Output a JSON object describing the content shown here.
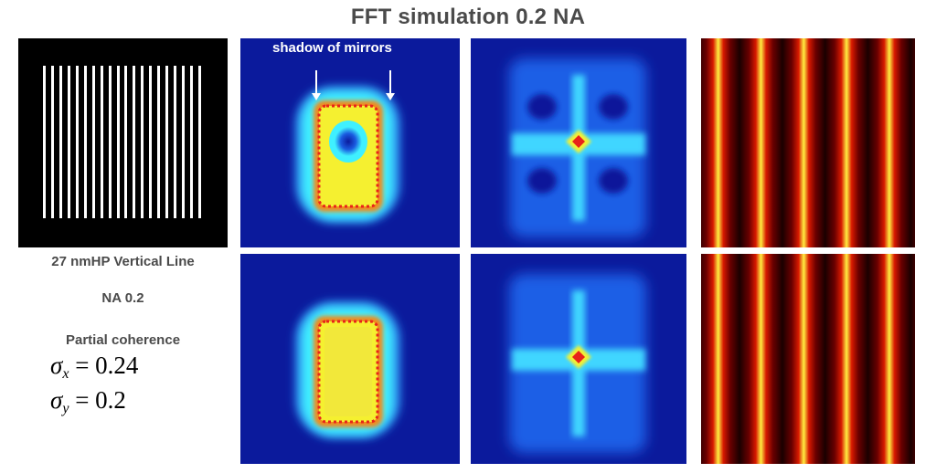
{
  "title": "FFT simulation  0.2 NA",
  "annotation": "shadow of mirrors",
  "description": {
    "line_label": "27 nmHP Vertical Line",
    "na_label": "NA 0.2",
    "coherence_label": "Partial coherence",
    "sigma_x": {
      "symbol": "σ",
      "subscript": "x",
      "equals": " = ",
      "value": "0.24"
    },
    "sigma_y": {
      "symbol": "σ",
      "subscript": "y",
      "equals": " = ",
      "value": "0.2"
    }
  },
  "mask": {
    "line_count": 20
  },
  "aerial": {
    "bright_line_count": 5
  },
  "colors": {
    "deep_blue": "#0b1a9c",
    "jet_cyan": "#3ff0ff",
    "jet_yellow": "#f5f030",
    "jet_red": "#e8231a",
    "hot_dark": "#1a0000",
    "hot_yellow": "#ffee40"
  }
}
